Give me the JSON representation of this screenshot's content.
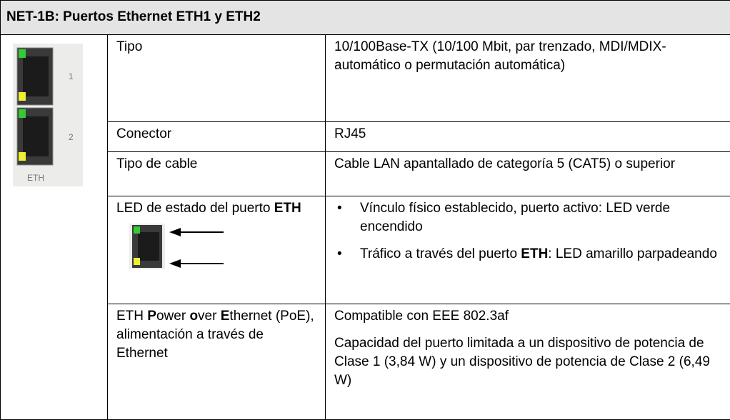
{
  "table": {
    "title": "NET-1B: Puertos Ethernet ETH1 y ETH2",
    "port_labels": [
      "1",
      "2",
      "ETH"
    ],
    "rows": [
      {
        "label": [
          "Tipo"
        ],
        "value": [
          "10/100Base-TX (10/100 Mbit, par trenzado, MDI/MDIX-automático o permutación automática)"
        ]
      },
      {
        "label": [
          "Conector"
        ],
        "value": [
          "RJ45"
        ]
      },
      {
        "label": [
          "Tipo de cable"
        ],
        "value": [
          "Cable LAN apantallado de categoría 5 (CAT5) o superior"
        ]
      },
      {
        "label": [
          "LED de estado del puerto ",
          "ETH"
        ],
        "bullets": [
          [
            "Vínculo físico establecido, puerto activo: LED verde encendido"
          ],
          [
            "Tráfico a través del puerto ",
            "ETH",
            ": LED amarillo parpadeando"
          ]
        ]
      },
      {
        "label": [
          "ETH ",
          "P",
          "ower ",
          "o",
          "ver ",
          "E",
          "thernet (PoE), alimentación a través de Ethernet"
        ],
        "value": [
          "Compatible con EEE 802.3af",
          "Capacidad del puerto limitada a un dispositivo de potencia de Clase 1 (3,84 W) y un dispositivo de potencia de Clase 2 (6,49 W)"
        ]
      }
    ]
  }
}
